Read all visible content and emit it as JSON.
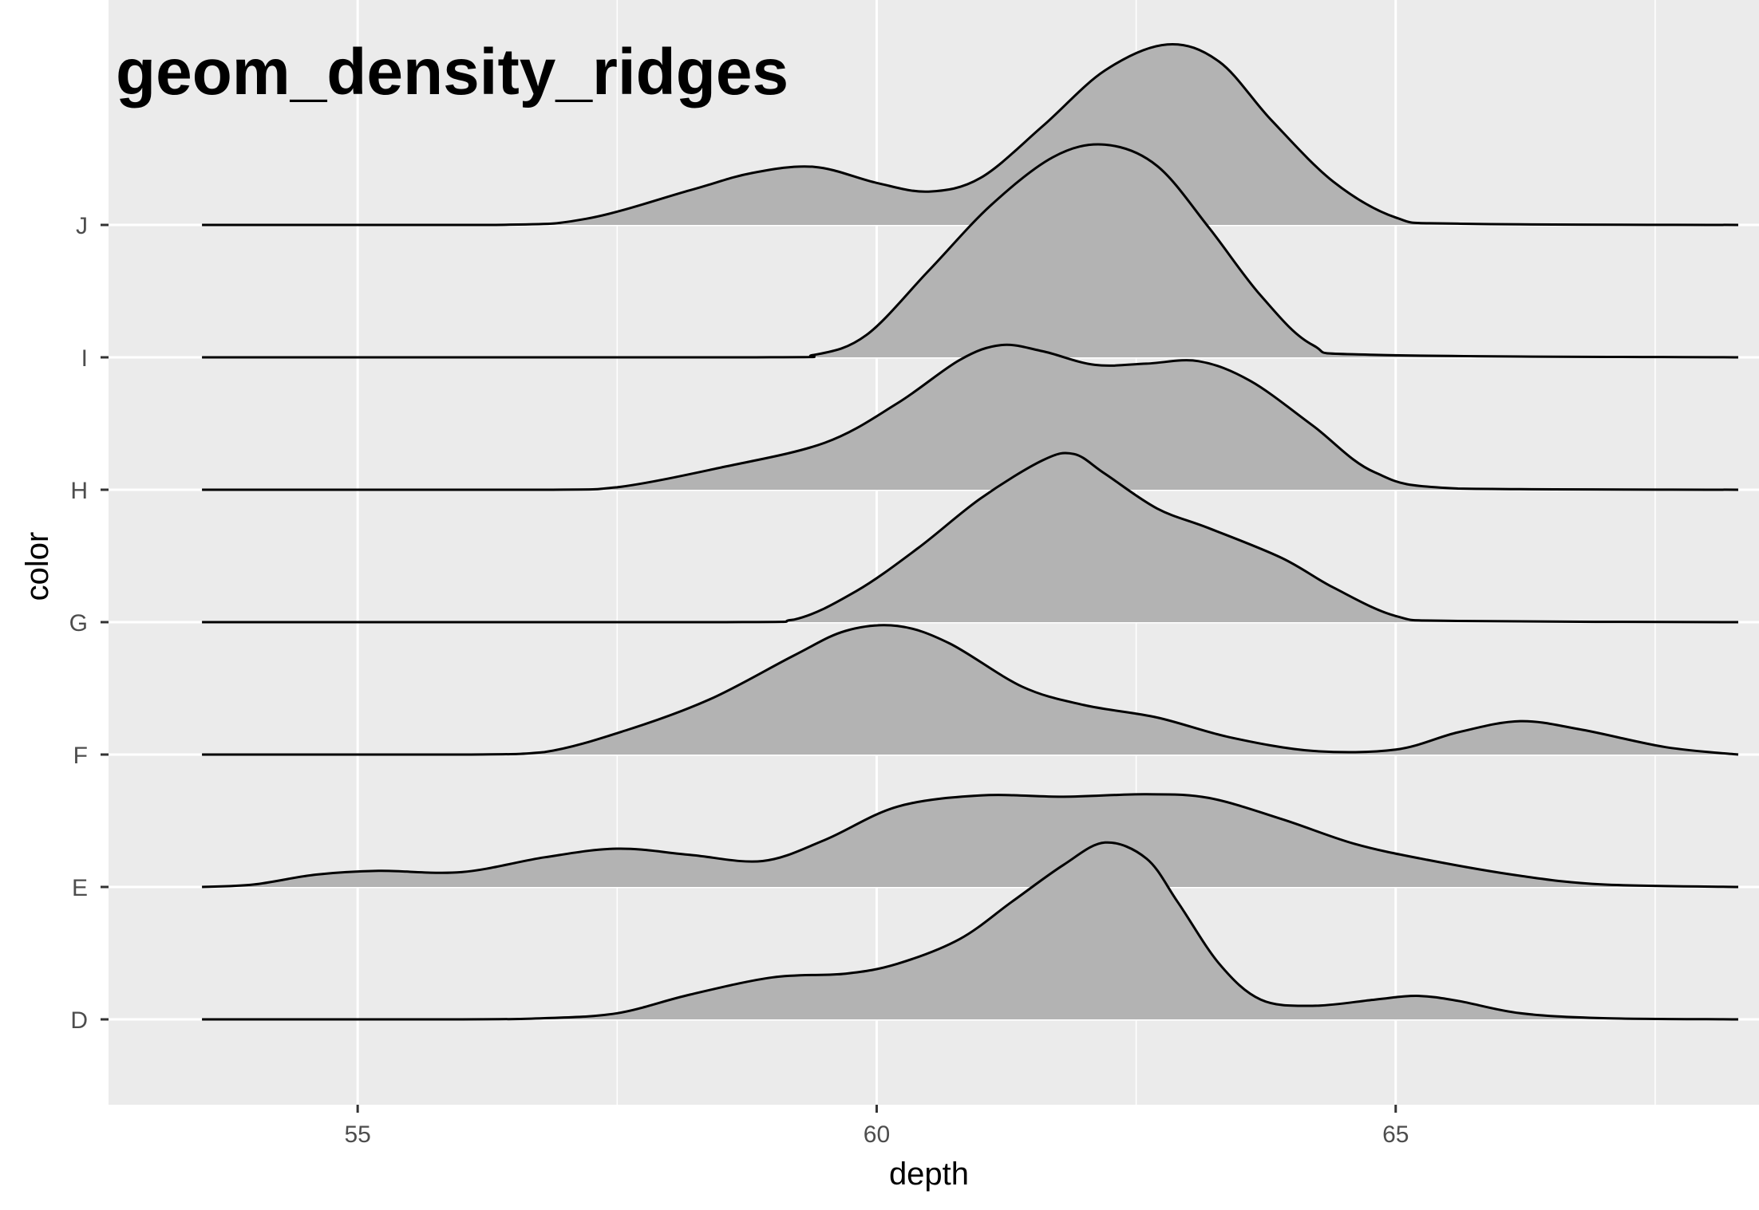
{
  "chart_data": {
    "type": "area",
    "subtype": "ridgeline",
    "title": "geom_density_ridges",
    "xlabel": "depth",
    "ylabel": "color",
    "xlim": [
      52.6,
      68.5
    ],
    "x_range_drawn": [
      53.5,
      68.3
    ],
    "x_ticks": [
      55,
      60,
      65
    ],
    "x_tick_labels": [
      "55",
      "60",
      "65"
    ],
    "categories": [
      "D",
      "E",
      "F",
      "G",
      "H",
      "I",
      "J"
    ],
    "grid": true,
    "legend": "none",
    "colors": {
      "panel": "#ebebeb",
      "grid": "#ffffff",
      "fill": "#b3b3b3",
      "line": "#000000"
    },
    "series": [
      {
        "category": "D",
        "points": [
          [
            53.5,
            0
          ],
          [
            56,
            0
          ],
          [
            56.8,
            0.01
          ],
          [
            57.5,
            0.05
          ],
          [
            58.2,
            0.2
          ],
          [
            59,
            0.34
          ],
          [
            59.7,
            0.37
          ],
          [
            60.2,
            0.45
          ],
          [
            60.8,
            0.65
          ],
          [
            61.3,
            0.95
          ],
          [
            61.8,
            1.25
          ],
          [
            62.2,
            1.43
          ],
          [
            62.6,
            1.3
          ],
          [
            62.9,
            0.95
          ],
          [
            63.3,
            0.45
          ],
          [
            63.7,
            0.16
          ],
          [
            64.2,
            0.11
          ],
          [
            64.8,
            0.16
          ],
          [
            65.2,
            0.19
          ],
          [
            65.6,
            0.15
          ],
          [
            66.2,
            0.05
          ],
          [
            67,
            0.01
          ],
          [
            68.3,
            0
          ]
        ]
      },
      {
        "category": "E",
        "points": [
          [
            53.5,
            0
          ],
          [
            54,
            0.02
          ],
          [
            54.6,
            0.1
          ],
          [
            55.2,
            0.13
          ],
          [
            56,
            0.12
          ],
          [
            56.8,
            0.24
          ],
          [
            57.5,
            0.31
          ],
          [
            58.2,
            0.26
          ],
          [
            58.9,
            0.21
          ],
          [
            59.5,
            0.38
          ],
          [
            60.2,
            0.65
          ],
          [
            61,
            0.74
          ],
          [
            61.8,
            0.73
          ],
          [
            62.6,
            0.75
          ],
          [
            63.2,
            0.72
          ],
          [
            63.9,
            0.55
          ],
          [
            64.6,
            0.35
          ],
          [
            65.3,
            0.22
          ],
          [
            66.2,
            0.09
          ],
          [
            67,
            0.02
          ],
          [
            68.3,
            0
          ]
        ]
      },
      {
        "category": "F",
        "points": [
          [
            53.5,
            0
          ],
          [
            56,
            0
          ],
          [
            56.8,
            0.02
          ],
          [
            57.6,
            0.2
          ],
          [
            58.4,
            0.45
          ],
          [
            59.2,
            0.8
          ],
          [
            59.7,
            1.0
          ],
          [
            60.2,
            1.04
          ],
          [
            60.7,
            0.9
          ],
          [
            61.4,
            0.55
          ],
          [
            62,
            0.4
          ],
          [
            62.7,
            0.3
          ],
          [
            63.4,
            0.14
          ],
          [
            64.2,
            0.03
          ],
          [
            65,
            0.04
          ],
          [
            65.6,
            0.18
          ],
          [
            66.2,
            0.27
          ],
          [
            66.8,
            0.2
          ],
          [
            67.6,
            0.06
          ],
          [
            68.3,
            0
          ]
        ]
      },
      {
        "category": "G",
        "points": [
          [
            53.5,
            0
          ],
          [
            58.5,
            0
          ],
          [
            59.2,
            0.02
          ],
          [
            59.8,
            0.25
          ],
          [
            60.4,
            0.6
          ],
          [
            61,
            1.0
          ],
          [
            61.6,
            1.31
          ],
          [
            61.9,
            1.36
          ],
          [
            62.2,
            1.2
          ],
          [
            62.7,
            0.92
          ],
          [
            63.2,
            0.76
          ],
          [
            63.9,
            0.52
          ],
          [
            64.4,
            0.28
          ],
          [
            65,
            0.05
          ],
          [
            65.6,
            0.01
          ],
          [
            68.3,
            0
          ]
        ]
      },
      {
        "category": "H",
        "points": [
          [
            53.5,
            0
          ],
          [
            56.8,
            0
          ],
          [
            57.5,
            0.02
          ],
          [
            58.5,
            0.18
          ],
          [
            59.5,
            0.38
          ],
          [
            60.2,
            0.7
          ],
          [
            60.8,
            1.05
          ],
          [
            61.2,
            1.17
          ],
          [
            61.6,
            1.12
          ],
          [
            62.1,
            1.01
          ],
          [
            62.6,
            1.02
          ],
          [
            63.1,
            1.04
          ],
          [
            63.6,
            0.88
          ],
          [
            64.2,
            0.52
          ],
          [
            64.8,
            0.14
          ],
          [
            65.6,
            0.01
          ],
          [
            68.3,
            0
          ]
        ]
      },
      {
        "category": "I",
        "points": [
          [
            53.5,
            0
          ],
          [
            58.8,
            0
          ],
          [
            59.4,
            0.02
          ],
          [
            59.9,
            0.18
          ],
          [
            60.5,
            0.7
          ],
          [
            61.1,
            1.23
          ],
          [
            61.7,
            1.62
          ],
          [
            62.2,
            1.72
          ],
          [
            62.7,
            1.55
          ],
          [
            63.2,
            1.05
          ],
          [
            63.7,
            0.5
          ],
          [
            64.2,
            0.1
          ],
          [
            64.8,
            0.02
          ],
          [
            68.3,
            0
          ]
        ]
      },
      {
        "category": "J",
        "points": [
          [
            53.5,
            0
          ],
          [
            56.3,
            0
          ],
          [
            57.2,
            0.05
          ],
          [
            58.2,
            0.28
          ],
          [
            58.8,
            0.42
          ],
          [
            59.4,
            0.47
          ],
          [
            60,
            0.34
          ],
          [
            60.5,
            0.27
          ],
          [
            61,
            0.38
          ],
          [
            61.6,
            0.8
          ],
          [
            62.2,
            1.25
          ],
          [
            62.8,
            1.46
          ],
          [
            63.3,
            1.32
          ],
          [
            63.8,
            0.85
          ],
          [
            64.4,
            0.35
          ],
          [
            65,
            0.06
          ],
          [
            65.6,
            0.01
          ],
          [
            68.3,
            0
          ]
        ]
      }
    ]
  }
}
